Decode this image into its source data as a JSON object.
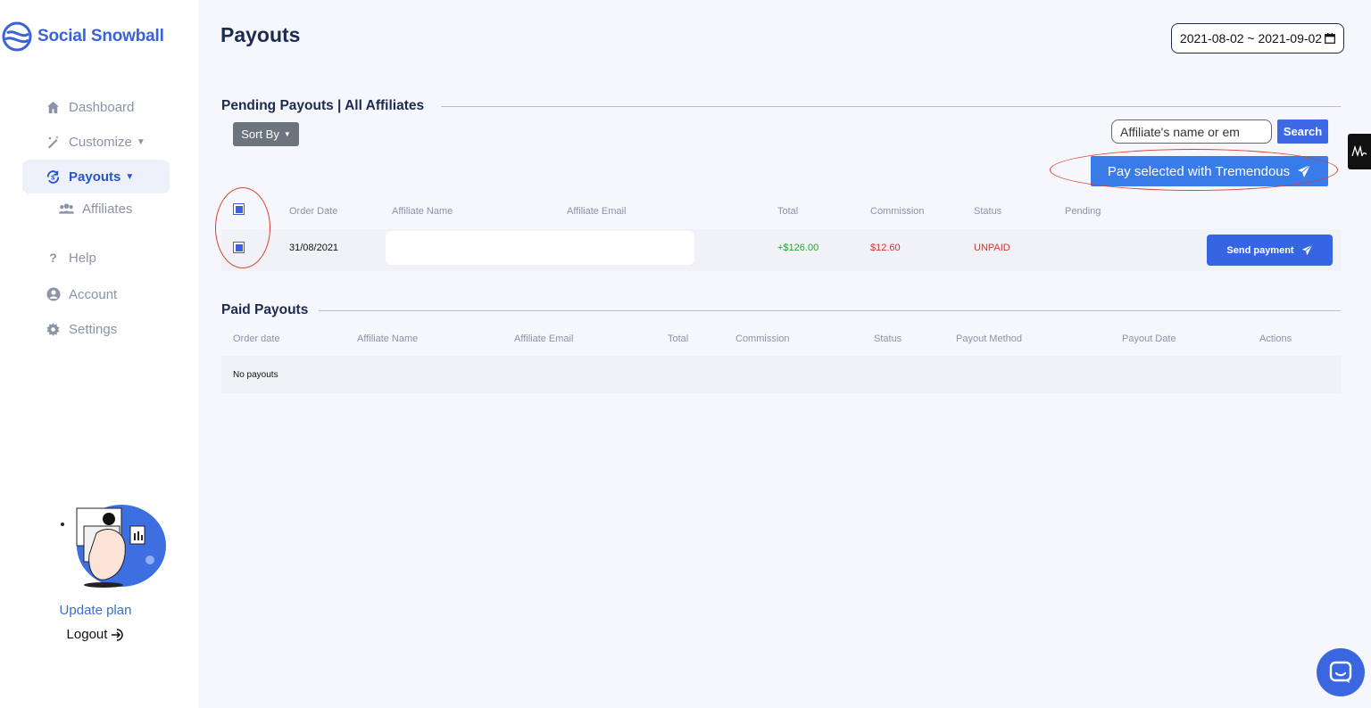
{
  "brand": {
    "name": "Social Snowball",
    "accent": "#3a63d8"
  },
  "sidebar": {
    "items": [
      {
        "label": "Dashboard",
        "icon": "home-icon"
      },
      {
        "label": "Customize",
        "icon": "magic-wand-icon",
        "has_caret": true
      },
      {
        "label": "Payouts",
        "icon": "payout-cycle-icon",
        "has_caret": true,
        "active": true
      },
      {
        "label": "Affiliates",
        "icon": "users-icon",
        "sub": true
      },
      {
        "label": "Help",
        "icon": "question-icon"
      },
      {
        "label": "Account",
        "icon": "user-circle-icon"
      },
      {
        "label": "Settings",
        "icon": "gear-icon"
      }
    ],
    "update_plan": "Update plan",
    "logout": "Logout"
  },
  "header": {
    "title": "Payouts",
    "date_range": "2021-08-02 ~ 2021-09-02"
  },
  "pending": {
    "title": "Pending Payouts | All Affiliates",
    "sort_label": "Sort By",
    "search_placeholder": "Affiliate's name or em",
    "search_label": "Search",
    "pay_selected_label": "Pay selected with Tremendous",
    "columns": [
      "Order Date",
      "Affiliate Name",
      "Affiliate Email",
      "Total",
      "Commission",
      "Status",
      "Pending"
    ],
    "rows": [
      {
        "order_date": "31/08/2021",
        "total": "+$126.00",
        "commission": "$12.60",
        "status": "UNPAID",
        "action_label": "Send payment"
      }
    ]
  },
  "paid": {
    "title": "Paid Payouts",
    "columns": [
      "Order date",
      "Affiliate Name",
      "Affiliate Email",
      "Total",
      "Commission",
      "Status",
      "Payout Method",
      "Payout Date",
      "Actions"
    ],
    "empty_text": "No payouts"
  },
  "colors": {
    "primary_button": "#3565e3",
    "total_positive": "#2e9d3a",
    "commission": "#d0342c",
    "status_unpaid": "#d0342c",
    "annotation": "#d9412f"
  }
}
